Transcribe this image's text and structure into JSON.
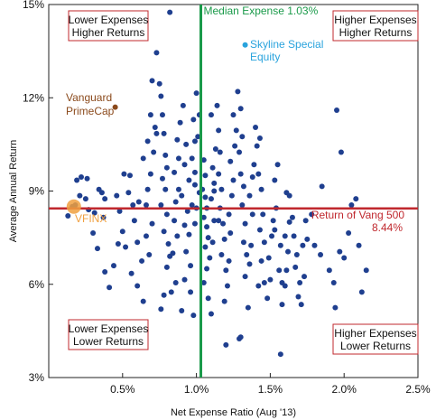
{
  "chart_data": {
    "type": "scatter",
    "xlabel": "Net Expense Ratio (Aug '13)",
    "ylabel": "Average Annual Return",
    "xlim": [
      0.0,
      2.5
    ],
    "ylim": [
      3,
      15
    ],
    "xticks": [
      {
        "v": 0.5,
        "label": "0.5%"
      },
      {
        "v": 1.0,
        "label": "1.0%"
      },
      {
        "v": 1.5,
        "label": "1.5%"
      },
      {
        "v": 2.0,
        "label": "2.0%"
      },
      {
        "v": 2.5,
        "label": "2.5%"
      }
    ],
    "yticks": [
      {
        "v": 3,
        "label": "3%"
      },
      {
        "v": 6,
        "label": "6%"
      },
      {
        "v": 9,
        "label": "9%"
      },
      {
        "v": 12,
        "label": "12%"
      },
      {
        "v": 15,
        "label": "15%"
      }
    ],
    "grid": false,
    "reference_lines": [
      {
        "orientation": "vertical",
        "value": 1.03,
        "label": "Median Expense 1.03%",
        "color": "#1a9a4a"
      },
      {
        "orientation": "horizontal",
        "value": 8.44,
        "label_line1": "Return of Vang 500",
        "label_line2": "8.44%",
        "color": "#c0282e"
      }
    ],
    "quadrant_labels": [
      {
        "position": "top-left",
        "line1": "Lower Expenses",
        "line2": "Higher Returns"
      },
      {
        "position": "top-right",
        "line1": "Higher Expenses",
        "line2": "Higher Returns"
      },
      {
        "position": "bottom-left",
        "line1": "Lower Expenses",
        "line2": "Lower Returns"
      },
      {
        "position": "bottom-right",
        "line1": "Higher Expenses",
        "line2": "Lower Returns"
      }
    ],
    "highlighted_points": [
      {
        "name_line1": "Vanguard",
        "name_line2": "PrimeCap",
        "x": 0.45,
        "y": 11.7,
        "color": "#8b4a1c"
      },
      {
        "name_line1": "Skyline Special",
        "name_line2": "Equity",
        "x": 1.33,
        "y": 13.7,
        "color": "#29a3dd"
      },
      {
        "name_line1": "VFINX",
        "name_line2": "",
        "x": 0.17,
        "y": 8.5,
        "color": "#f0a040"
      }
    ],
    "series_color": "#1f3f8f",
    "points": [
      [
        0.73,
        13.45
      ],
      [
        0.82,
        14.75
      ],
      [
        0.18,
        8.55
      ],
      [
        0.22,
        9.45
      ],
      [
        0.26,
        9.4
      ],
      [
        0.19,
        9.35
      ],
      [
        0.16,
        8.5
      ],
      [
        0.13,
        8.2
      ],
      [
        0.21,
        8.85
      ],
      [
        0.25,
        8.75
      ],
      [
        0.27,
        8.4
      ],
      [
        0.31,
        8.3
      ],
      [
        0.34,
        9.05
      ],
      [
        0.36,
        8.95
      ],
      [
        0.38,
        8.75
      ],
      [
        0.37,
        8.15
      ],
      [
        0.3,
        7.65
      ],
      [
        0.33,
        7.15
      ],
      [
        0.38,
        6.4
      ],
      [
        0.41,
        5.9
      ],
      [
        0.44,
        6.6
      ],
      [
        0.47,
        7.3
      ],
      [
        0.5,
        7.7
      ],
      [
        0.52,
        7.2
      ],
      [
        0.46,
        8.85
      ],
      [
        0.48,
        8.35
      ],
      [
        0.54,
        8.95
      ],
      [
        0.51,
        9.55
      ],
      [
        0.55,
        9.5
      ],
      [
        0.57,
        8.55
      ],
      [
        0.61,
        8.65
      ],
      [
        0.58,
        8.05
      ],
      [
        0.6,
        7.35
      ],
      [
        0.63,
        6.75
      ],
      [
        0.56,
        6.35
      ],
      [
        0.6,
        5.95
      ],
      [
        0.64,
        5.45
      ],
      [
        0.68,
        6.95
      ],
      [
        0.66,
        7.55
      ],
      [
        0.7,
        7.95
      ],
      [
        0.66,
        8.55
      ],
      [
        0.67,
        9.05
      ],
      [
        0.69,
        9.55
      ],
      [
        0.64,
        10.05
      ],
      [
        0.71,
        10.25
      ],
      [
        0.67,
        10.6
      ],
      [
        0.73,
        10.85
      ],
      [
        0.72,
        11.05
      ],
      [
        0.69,
        11.45
      ],
      [
        0.7,
        12.55
      ],
      [
        0.75,
        12.45
      ],
      [
        0.76,
        12.05
      ],
      [
        0.77,
        11.45
      ],
      [
        0.78,
        10.85
      ],
      [
        0.79,
        10.15
      ],
      [
        0.8,
        9.75
      ],
      [
        0.77,
        9.4
      ],
      [
        0.79,
        9.05
      ],
      [
        0.76,
        8.55
      ],
      [
        0.8,
        8.25
      ],
      [
        0.78,
        7.7
      ],
      [
        0.81,
        7.3
      ],
      [
        0.82,
        6.9
      ],
      [
        0.8,
        6.55
      ],
      [
        0.78,
        5.65
      ],
      [
        0.76,
        5.2
      ],
      [
        0.83,
        5.75
      ],
      [
        0.86,
        6.05
      ],
      [
        0.84,
        7.0
      ],
      [
        0.87,
        7.55
      ],
      [
        0.85,
        8.05
      ],
      [
        0.86,
        8.65
      ],
      [
        0.88,
        9.05
      ],
      [
        0.85,
        9.6
      ],
      [
        0.88,
        10.05
      ],
      [
        0.87,
        10.65
      ],
      [
        0.89,
        11.2
      ],
      [
        0.91,
        11.75
      ],
      [
        0.93,
        10.5
      ],
      [
        0.92,
        9.85
      ],
      [
        0.95,
        9.35
      ],
      [
        0.9,
        8.85
      ],
      [
        0.94,
        8.35
      ],
      [
        0.92,
        7.9
      ],
      [
        0.95,
        7.6
      ],
      [
        0.93,
        7.05
      ],
      [
        0.96,
        6.6
      ],
      [
        0.92,
        6.15
      ],
      [
        0.96,
        5.75
      ],
      [
        0.9,
        5.15
      ],
      [
        0.98,
        5.0
      ],
      [
        0.99,
        7.95
      ],
      [
        0.97,
        8.55
      ],
      [
        1.0,
        8.45
      ],
      [
        0.99,
        9.2
      ],
      [
        0.97,
        10.05
      ],
      [
        0.99,
        10.6
      ],
      [
        0.98,
        11.3
      ],
      [
        1.0,
        12.15
      ],
      [
        1.02,
        11.45
      ],
      [
        1.01,
        10.75
      ],
      [
        1.05,
        10.0
      ],
      [
        1.06,
        9.5
      ],
      [
        1.04,
        9.05
      ],
      [
        1.06,
        8.8
      ],
      [
        1.07,
        8.45
      ],
      [
        1.05,
        8.15
      ],
      [
        1.07,
        7.85
      ],
      [
        1.08,
        7.5
      ],
      [
        1.06,
        7.2
      ],
      [
        1.09,
        6.85
      ],
      [
        1.07,
        6.5
      ],
      [
        1.05,
        6.05
      ],
      [
        1.08,
        5.55
      ],
      [
        1.1,
        5.05
      ],
      [
        1.11,
        7.35
      ],
      [
        1.12,
        8.05
      ],
      [
        1.1,
        8.75
      ],
      [
        1.12,
        9.25
      ],
      [
        1.11,
        9.75
      ],
      [
        1.13,
        10.35
      ],
      [
        1.1,
        11.45
      ],
      [
        1.14,
        11.75
      ],
      [
        1.15,
        10.95
      ],
      [
        1.16,
        10.25
      ],
      [
        1.15,
        9.55
      ],
      [
        1.17,
        9.05
      ],
      [
        1.16,
        8.45
      ],
      [
        1.18,
        7.95
      ],
      [
        1.19,
        7.45
      ],
      [
        1.17,
        6.95
      ],
      [
        1.2,
        6.45
      ],
      [
        1.21,
        5.95
      ],
      [
        1.19,
        5.45
      ],
      [
        1.2,
        4.05
      ],
      [
        1.22,
        6.75
      ],
      [
        1.23,
        7.65
      ],
      [
        1.22,
        8.25
      ],
      [
        1.24,
        8.85
      ],
      [
        1.25,
        9.35
      ],
      [
        1.23,
        9.95
      ],
      [
        1.26,
        10.45
      ],
      [
        1.27,
        10.95
      ],
      [
        1.25,
        11.45
      ],
      [
        1.28,
        12.2
      ],
      [
        1.3,
        11.65
      ],
      [
        1.31,
        10.75
      ],
      [
        1.29,
        10.25
      ],
      [
        1.3,
        9.55
      ],
      [
        1.32,
        9.15
      ],
      [
        1.31,
        8.55
      ],
      [
        1.33,
        7.95
      ],
      [
        1.32,
        7.35
      ],
      [
        1.34,
        6.95
      ],
      [
        1.33,
        6.25
      ],
      [
        1.35,
        5.25
      ],
      [
        1.29,
        4.25
      ],
      [
        1.36,
        6.65
      ],
      [
        1.37,
        7.25
      ],
      [
        1.38,
        8.25
      ],
      [
        1.36,
        8.85
      ],
      [
        1.38,
        9.45
      ],
      [
        1.39,
        9.85
      ],
      [
        1.41,
        10.45
      ],
      [
        1.4,
        11.05
      ],
      [
        1.43,
        10.7
      ],
      [
        1.42,
        9.55
      ],
      [
        1.44,
        9.05
      ],
      [
        1.45,
        8.25
      ],
      [
        1.43,
        7.75
      ],
      [
        1.46,
        7.35
      ],
      [
        1.44,
        6.75
      ],
      [
        1.46,
        6.05
      ],
      [
        1.42,
        5.95
      ],
      [
        1.48,
        5.55
      ],
      [
        1.5,
        6.15
      ],
      [
        1.49,
        6.85
      ],
      [
        1.51,
        7.55
      ],
      [
        1.53,
        7.75
      ],
      [
        1.52,
        8.05
      ],
      [
        1.54,
        8.45
      ],
      [
        1.53,
        9.35
      ],
      [
        1.55,
        9.85
      ],
      [
        1.57,
        7.25
      ],
      [
        1.56,
        6.45
      ],
      [
        1.58,
        6.05
      ],
      [
        1.58,
        5.35
      ],
      [
        1.6,
        5.95
      ],
      [
        1.61,
        6.45
      ],
      [
        1.62,
        7.05
      ],
      [
        1.6,
        7.55
      ],
      [
        1.63,
        8.0
      ],
      [
        1.61,
        8.95
      ],
      [
        1.63,
        8.85
      ],
      [
        1.65,
        8.15
      ],
      [
        1.66,
        7.55
      ],
      [
        1.68,
        6.95
      ],
      [
        1.67,
        6.55
      ],
      [
        1.7,
        6.05
      ],
      [
        1.69,
        5.6
      ],
      [
        1.71,
        5.35
      ],
      [
        1.73,
        6.25
      ],
      [
        1.72,
        7.25
      ],
      [
        1.75,
        7.45
      ],
      [
        1.74,
        8.05
      ],
      [
        1.8,
        7.25
      ],
      [
        1.78,
        8.25
      ],
      [
        1.85,
        9.15
      ],
      [
        1.84,
        6.95
      ],
      [
        1.9,
        6.45
      ],
      [
        1.93,
        6.05
      ],
      [
        1.94,
        5.25
      ],
      [
        1.95,
        11.6
      ],
      [
        1.98,
        10.25
      ],
      [
        1.97,
        7.05
      ],
      [
        2.0,
        6.85
      ],
      [
        2.05,
        8.55
      ],
      [
        2.08,
        8.75
      ],
      [
        2.1,
        7.25
      ],
      [
        2.12,
        5.75
      ],
      [
        2.15,
        6.45
      ],
      [
        1.57,
        3.75
      ],
      [
        1.3,
        4.3
      ],
      [
        2.03,
        7.65
      ],
      [
        1.15,
        8.05
      ],
      [
        1.12,
        9.0
      ],
      [
        1.02,
        8.95
      ],
      [
        0.99,
        9.6
      ]
    ]
  }
}
